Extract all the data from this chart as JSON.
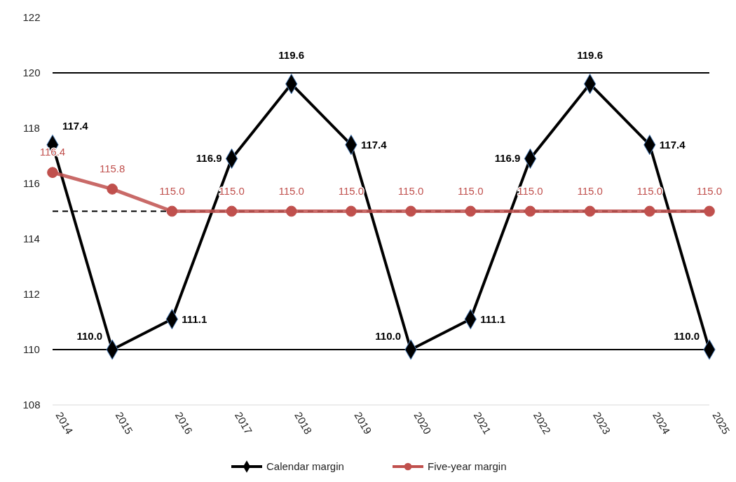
{
  "chart_data": {
    "type": "line",
    "categories": [
      "2014",
      "2015",
      "2016",
      "2017",
      "2018",
      "2019",
      "2020",
      "2021",
      "2022",
      "2023",
      "2024",
      "2025"
    ],
    "series": [
      {
        "name": "Calendar margin",
        "color": "#000000",
        "marker": "diamond",
        "values": [
          117.4,
          110.0,
          111.1,
          116.9,
          119.6,
          117.4,
          110.0,
          111.1,
          116.9,
          119.6,
          117.4,
          110.0
        ],
        "value_labels": [
          "117.4",
          "110.0",
          "111.1",
          "116.9",
          "119.6",
          "117.4",
          "110.0",
          "111.1",
          "116.9",
          "119.6",
          "117.4",
          "110.0"
        ]
      },
      {
        "name": "Five-year margin",
        "color": "#c0504d",
        "marker": "circle",
        "values": [
          116.4,
          115.8,
          115.0,
          115.0,
          115.0,
          115.0,
          115.0,
          115.0,
          115.0,
          115.0,
          115.0,
          115.0
        ],
        "value_labels": [
          "116.4",
          "115.8",
          "115.0",
          "115.0",
          "115.0",
          "115.0",
          "115.0",
          "115.0",
          "115.0",
          "115.0",
          "115.0",
          "115.0"
        ]
      }
    ],
    "ylim": [
      108,
      122
    ],
    "yticks": [
      108,
      110,
      112,
      114,
      116,
      118,
      120,
      122
    ],
    "ref_lines": [
      {
        "axis": "y",
        "value": 110,
        "color": "#000000",
        "line_style": "solid"
      },
      {
        "axis": "y",
        "value": 120,
        "color": "#000000",
        "line_style": "solid"
      },
      {
        "axis": "y",
        "value": 115,
        "color": "#000000",
        "line_style": "dashed"
      }
    ],
    "legend": "bottom",
    "grid": false
  }
}
